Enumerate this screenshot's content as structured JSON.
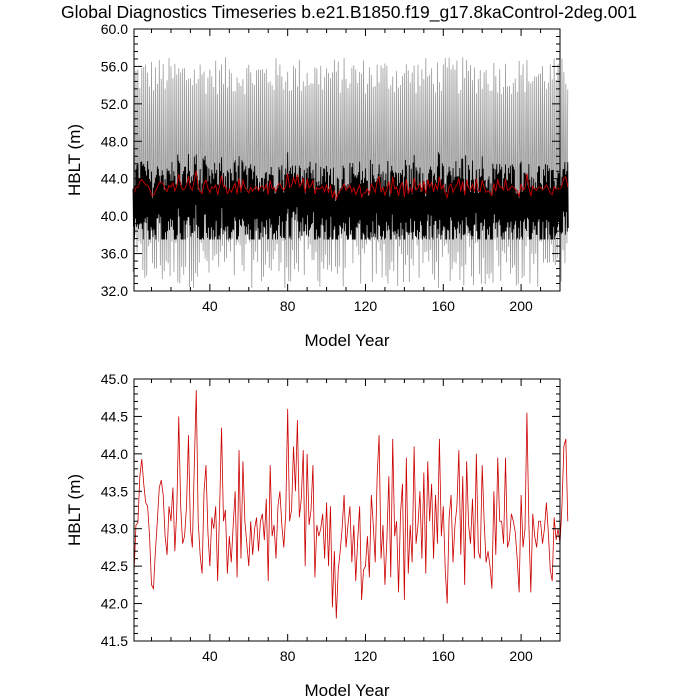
{
  "figure": {
    "title": "Global Diagnostics Timeseries b.e21.B1850.f19_g17.8kaControl-2deg.001"
  },
  "chart_data": [
    {
      "type": "line",
      "title": "Global Diagnostics Timeseries b.e21.B1850.f19_g17.8kaControl-2deg.001",
      "xlabel": "Model Year",
      "ylabel": "HBLT (m)",
      "xlim": [
        1,
        220
      ],
      "ylim": [
        32.0,
        60.0
      ],
      "xticks": [
        40,
        80,
        120,
        160,
        200
      ],
      "xtick_labels": [
        "40",
        "80",
        "120",
        "160",
        "200"
      ],
      "yticks": [
        32.0,
        36.0,
        40.0,
        44.0,
        48.0,
        52.0,
        56.0,
        60.0
      ],
      "ytick_labels": [
        "32.0",
        "36.0",
        "40.0",
        "44.0",
        "48.0",
        "52.0",
        "56.0",
        "60.0"
      ],
      "grid": false,
      "series": [
        {
          "kind": "monthly envelope",
          "color": "#9a9a9a",
          "annual_max_range": [
            53.0,
            57.0
          ],
          "annual_min_range": [
            32.3,
            38.0
          ]
        },
        {
          "kind": "monthly core",
          "color": "#000000",
          "range": [
            37.5,
            47.0
          ]
        },
        {
          "kind": "annual mean",
          "color": "#cc0000",
          "source": "same as panel 2"
        }
      ]
    },
    {
      "type": "line",
      "xlabel": "Model Year",
      "ylabel": "HBLT (m)",
      "xlim": [
        1,
        220
      ],
      "ylim": [
        41.5,
        45.0
      ],
      "xticks": [
        40,
        80,
        120,
        160,
        200
      ],
      "xtick_labels": [
        "40",
        "80",
        "120",
        "160",
        "200"
      ],
      "yticks": [
        41.5,
        42.0,
        42.5,
        43.0,
        43.5,
        44.0,
        44.5,
        45.0
      ],
      "ytick_labels": [
        "41.5",
        "42.0",
        "42.5",
        "43.0",
        "43.5",
        "44.0",
        "44.5",
        "45.0"
      ],
      "grid": false,
      "series": [
        {
          "color": "#cc0000",
          "x_start": 1,
          "x_step": 1,
          "values": [
            42.4,
            43.05,
            43.08,
            43.7,
            43.93,
            43.6,
            43.35,
            43.3,
            42.9,
            42.25,
            42.2,
            42.7,
            43.1,
            43.55,
            43.65,
            43.45,
            42.9,
            42.65,
            43.3,
            43.1,
            43.55,
            42.7,
            43.25,
            44.5,
            43.3,
            42.8,
            42.9,
            43.3,
            44.25,
            43.0,
            42.75,
            43.85,
            44.85,
            43.1,
            42.65,
            42.4,
            43.5,
            43.85,
            42.95,
            42.5,
            43.15,
            43.0,
            43.3,
            42.3,
            43.25,
            44.35,
            43.1,
            43.25,
            42.4,
            42.9,
            42.55,
            43.05,
            43.5,
            42.35,
            44.05,
            42.6,
            43.9,
            43.1,
            42.8,
            42.5,
            43.1,
            42.65,
            43.0,
            43.15,
            42.7,
            43.1,
            43.2,
            42.85,
            43.4,
            42.3,
            43.85,
            42.9,
            43.05,
            42.6,
            43.3,
            43.5,
            43.05,
            42.75,
            43.2,
            44.6,
            43.1,
            43.25,
            44.1,
            43.5,
            44.45,
            43.15,
            43.4,
            44.05,
            42.5,
            44.0,
            43.05,
            43.25,
            43.85,
            42.35,
            43.05,
            42.9,
            43.0,
            43.2,
            42.6,
            43.35,
            42.5,
            43.3,
            41.95,
            42.7,
            41.8,
            42.45,
            42.7,
            43.0,
            43.45,
            42.75,
            43.05,
            43.3,
            42.55,
            43.05,
            42.3,
            42.85,
            43.3,
            42.05,
            42.45,
            42.5,
            42.9,
            42.35,
            43.45,
            43.05,
            42.55,
            43.7,
            44.25,
            42.6,
            43.05,
            42.25,
            42.85,
            43.7,
            42.35,
            44.2,
            42.9,
            43.1,
            42.15,
            43.2,
            43.6,
            42.05,
            43.95,
            42.4,
            43.05,
            42.55,
            44.1,
            42.8,
            43.05,
            43.5,
            42.6,
            43.75,
            42.4,
            43.9,
            43.1,
            43.6,
            42.6,
            43.45,
            42.8,
            44.2,
            42.9,
            43.3,
            42.45,
            42.0,
            43.15,
            43.45,
            42.55,
            43.05,
            43.3,
            44.05,
            42.65,
            43.7,
            42.25,
            43.9,
            43.05,
            42.8,
            43.4,
            42.6,
            44.0,
            42.7,
            42.6,
            43.85,
            43.1,
            42.55,
            42.7,
            42.5,
            42.2,
            43.5,
            42.65,
            43.95,
            43.1,
            43.1,
            42.8,
            43.95,
            42.75,
            42.85,
            43.2,
            43.1,
            42.95,
            42.6,
            42.15,
            43.45,
            42.75,
            43.0,
            44.55,
            43.05,
            42.15,
            43.2,
            42.9,
            42.75,
            43.1,
            43.1,
            42.8,
            43.0,
            43.35,
            42.95,
            42.45,
            42.3,
            43.15,
            42.85,
            43.0,
            42.8,
            43.3,
            44.1,
            44.2,
            43.1
          ]
        }
      ]
    }
  ]
}
